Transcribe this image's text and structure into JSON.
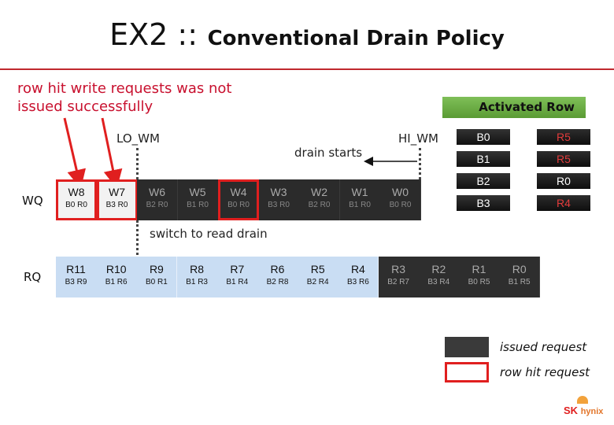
{
  "title": {
    "main": "EX2 ::",
    "rest": "Conventional Drain Policy"
  },
  "note": [
    "row hit write requests was not",
    "issued successfully"
  ],
  "markers": {
    "lo_wm": "LO_WM",
    "hi_wm": "HI_WM",
    "drain_starts": "drain starts",
    "switch": "switch to read drain"
  },
  "wq": {
    "label": "WQ",
    "cells": [
      {
        "name": "W8",
        "sub": "B0 R0",
        "style": "red"
      },
      {
        "name": "W7",
        "sub": "B3 R0",
        "style": "red"
      },
      {
        "name": "W6",
        "sub": "B2 R0",
        "style": "dark"
      },
      {
        "name": "W5",
        "sub": "B1 R0",
        "style": "dark"
      },
      {
        "name": "W4",
        "sub": "B0 R0",
        "style": "darkred"
      },
      {
        "name": "W3",
        "sub": "B3 R0",
        "style": "dark"
      },
      {
        "name": "W2",
        "sub": "B2 R0",
        "style": "dark"
      },
      {
        "name": "W1",
        "sub": "B1 R0",
        "style": "dark"
      },
      {
        "name": "W0",
        "sub": "B0 R0",
        "style": "dark"
      }
    ]
  },
  "rq": {
    "label": "RQ",
    "cells": [
      {
        "name": "R11",
        "sub": "B3 R9",
        "style": "blue"
      },
      {
        "name": "R10",
        "sub": "B1 R6",
        "style": "blue"
      },
      {
        "name": "R9",
        "sub": "B0 R1",
        "style": "blue"
      },
      {
        "name": "R8",
        "sub": "B1 R3",
        "style": "blue"
      },
      {
        "name": "R7",
        "sub": "B1 R4",
        "style": "blue"
      },
      {
        "name": "R6",
        "sub": "B2 R8",
        "style": "blue"
      },
      {
        "name": "R5",
        "sub": "B2 R4",
        "style": "blue"
      },
      {
        "name": "R4",
        "sub": "B3 R6",
        "style": "blue"
      },
      {
        "name": "R3",
        "sub": "B2 R7",
        "style": "dark"
      },
      {
        "name": "R2",
        "sub": "B3 R4",
        "style": "dark"
      },
      {
        "name": "R1",
        "sub": "B0 R5",
        "style": "dark"
      },
      {
        "name": "R0",
        "sub": "B1 R5",
        "style": "dark"
      }
    ]
  },
  "activated_row": {
    "header": "Activated Row",
    "rows": [
      {
        "bank": "B0",
        "row": "R5",
        "color": "#e23b3b"
      },
      {
        "bank": "B1",
        "row": "R5",
        "color": "#e23b3b"
      },
      {
        "bank": "B2",
        "row": "R0",
        "color": "#ffffff"
      },
      {
        "bank": "B3",
        "row": "R4",
        "color": "#e23b3b"
      }
    ]
  },
  "legend": {
    "issued": "issued request",
    "row_hit": "row hit request"
  },
  "logo": {
    "sk": "SK",
    "hynix": "hynix"
  },
  "colors": {
    "accent_red": "#c8102e",
    "green": "#6aae44",
    "blue": "#c9ddf3",
    "dark": "#2b2b2b"
  }
}
